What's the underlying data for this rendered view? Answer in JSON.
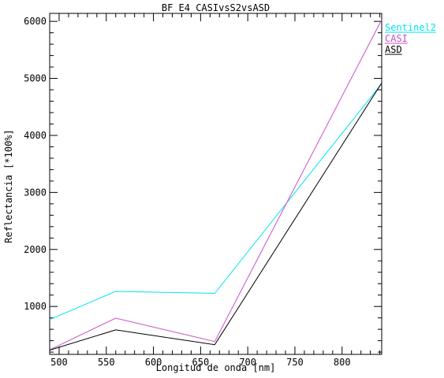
{
  "chart_data": {
    "type": "line",
    "title": "BF_E4_CASIvsS2vsASD",
    "xlabel": "Longitud de onda [nm]",
    "ylabel": "Reflectancia [*100%]",
    "xlim": [
      490,
      842
    ],
    "ylim": [
      160,
      6140
    ],
    "xticks": [
      500,
      550,
      600,
      650,
      700,
      750,
      800
    ],
    "yticks": [
      1000,
      2000,
      3000,
      4000,
      5000,
      6000
    ],
    "grid": false,
    "legend_position": "top-right, outside plot",
    "series": [
      {
        "name": "Sentinel2",
        "color": "#00e5ee",
        "x": [
          490,
          560,
          665,
          842
        ],
        "y": [
          770,
          1265,
          1230,
          4910
        ]
      },
      {
        "name": "CASI",
        "color": "#c850c8",
        "x": [
          490,
          560,
          665,
          842
        ],
        "y": [
          240,
          795,
          385,
          6030
        ]
      },
      {
        "name": "ASD",
        "color": "#000000",
        "x": [
          490,
          560,
          665,
          842
        ],
        "y": [
          235,
          590,
          330,
          4920
        ]
      }
    ]
  }
}
